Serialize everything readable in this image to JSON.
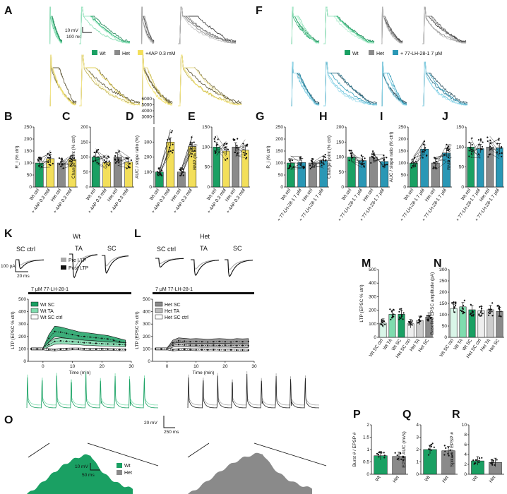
{
  "colors": {
    "wt": "#1aa063",
    "wt_light": "#7fdcae",
    "wt_pale": "#d9f6e8",
    "het": "#8a8a8a",
    "het_dark": "#444444",
    "fourap": "#f3df5a",
    "fourap_dark": "#6b5f2a",
    "lh": "#2a97b5",
    "lh_dark": "#173f4f"
  },
  "panels": {
    "A": "A",
    "B": "B",
    "C": "C",
    "D": "D",
    "E": "E",
    "F": "F",
    "G": "G",
    "H": "H",
    "I": "I",
    "J": "J",
    "K": "K",
    "L": "L",
    "M": "M",
    "N": "N",
    "O": "O",
    "P": "P",
    "Q": "Q",
    "R": "R"
  },
  "scalebars": {
    "a_mv": "10 mV",
    "a_ms": "100 ms",
    "k_pa": "100 pA",
    "k_ms": "20 ms",
    "o_mv": "20 mV",
    "o_ms": "250 ms",
    "o2_mv": "10 mV",
    "o2_ms": "50 ms"
  },
  "legend_A": {
    "wt": "Wt",
    "het": "Het",
    "drug": "+4AP 0.3 mM"
  },
  "legend_F": {
    "wt": "Wt",
    "het": "Het",
    "drug": "+ 77-LH-28-1 7 μM"
  },
  "legend_K": {
    "pre": "Pre LTP",
    "post": "Post LTP",
    "wt_sc": "Wt SC",
    "wt_ta": "Wt TA",
    "wt_scctrl": "Wt SC ctrl"
  },
  "legend_L": {
    "het_sc": "Het SC",
    "het_ta": "Het TA",
    "het_scctrl": "Het SC ctrl"
  },
  "legend_O": {
    "wt": "Wt",
    "het": "Het"
  },
  "trace_titles": {
    "k_group": "Wt",
    "l_group": "Het",
    "sc_ctrl": "SC ctrl",
    "ta": "TA",
    "sc": "SC",
    "drug_bar": "7 μM 77-LH-28-1"
  },
  "chart_data": [
    {
      "panel": "B",
      "type": "bar",
      "ylabel": "R_i (% ctrl)",
      "ylim": [
        0,
        250
      ],
      "yticks": [
        0,
        50,
        100,
        150,
        200,
        250
      ],
      "categories": [
        "Wt ctrl",
        "+ 4AP 0.3 mM",
        "Het ctrl",
        "+ 4AP 0.3 mM"
      ],
      "values": [
        100,
        118,
        100,
        115
      ]
    },
    {
      "panel": "C",
      "type": "bar",
      "ylabel": "Change point (% ctrl)",
      "ylim": [
        0,
        200
      ],
      "yticks": [
        0,
        50,
        100,
        150,
        200
      ],
      "categories": [
        "Wt ctrl",
        "+ 4AP 0.3 mM",
        "Het ctrl",
        "+ 4AP 0.3 mM"
      ],
      "values": [
        100,
        82,
        100,
        83
      ]
    },
    {
      "panel": "D",
      "type": "bar",
      "ylabel": "AUC / slope ratio (%)",
      "ylim": [
        0,
        400
      ],
      "yticks": [
        0,
        100,
        200,
        300
      ],
      "break_ticks": [
        3000,
        4000,
        5000,
        6000
      ],
      "categories": [
        "Wt ctrl",
        "+ 4AP 0.3 mM",
        "Het ctrl",
        "+ 4AP 0.3 mM"
      ],
      "values": [
        100,
        300,
        100,
        270
      ]
    },
    {
      "panel": "E",
      "type": "bar",
      "ylabel": "RMP (% ctrl)",
      "ylim": [
        0,
        150
      ],
      "yticks": [
        0,
        50,
        100,
        150
      ],
      "categories": [
        "Wt ctrl",
        "+ 4AP 0.3 mM",
        "Het ctrl",
        "+ 4AP 0.3 mM"
      ],
      "values": [
        100,
        90,
        100,
        92
      ]
    },
    {
      "panel": "G",
      "type": "bar",
      "ylabel": "R_i (% ctrl)",
      "ylim": [
        0,
        250
      ],
      "yticks": [
        0,
        50,
        100,
        150,
        200,
        250
      ],
      "categories": [
        "Wt ctrl",
        "+ 77-LH-28-1 7 μM",
        "Het ctrl",
        "+ 77-LH-28-1 7 μM"
      ],
      "values": [
        100,
        102,
        100,
        110
      ]
    },
    {
      "panel": "H",
      "type": "bar",
      "ylabel": "Change point (% ctrl)",
      "ylim": [
        0,
        200
      ],
      "yticks": [
        0,
        50,
        100,
        150,
        200
      ],
      "categories": [
        "Wt ctrl",
        "+ 77-LH-28-1 7 μM",
        "Het ctrl",
        "+ 77-LH-28-1 7 μM"
      ],
      "values": [
        100,
        88,
        100,
        85
      ]
    },
    {
      "panel": "I",
      "type": "bar",
      "ylabel": "AUC / slope ratio (% ctrl)",
      "ylim": [
        0,
        250
      ],
      "yticks": [
        0,
        50,
        100,
        150,
        200,
        250
      ],
      "categories": [
        "Wt ctrl",
        "+ 77-LH-28-1 7 μM",
        "Het ctrl",
        "+ 77-LH-28-1 7 μM"
      ],
      "values": [
        100,
        158,
        100,
        142
      ]
    },
    {
      "panel": "J",
      "type": "bar",
      "ylabel": "RMP (% ctrl)",
      "ylim": [
        0,
        150
      ],
      "yticks": [
        0,
        50,
        100,
        150
      ],
      "categories": [
        "Wt ctrl",
        "+ 77-LH-28-1 7 μM",
        "Het ctrl",
        "+ 77-LH-28-1 7 μM"
      ],
      "values": [
        100,
        96,
        100,
        98
      ]
    },
    {
      "panel": "K",
      "type": "line",
      "ylabel": "LTP (EPSC % ctrl)",
      "xlabel": "Time (min)",
      "xlim": [
        -5,
        30
      ],
      "ylim": [
        0,
        500
      ],
      "xticks": [
        0,
        10,
        20,
        30
      ],
      "yticks": [
        0,
        100,
        200,
        300,
        400,
        500
      ],
      "x": [
        -4,
        -2,
        0,
        2,
        4,
        6,
        8,
        10,
        12,
        14,
        16,
        18,
        20,
        22,
        24,
        26,
        28
      ],
      "series": [
        {
          "name": "Wt SC",
          "values": [
            100,
            100,
            100,
            185,
            240,
            235,
            225,
            215,
            205,
            200,
            195,
            190,
            185,
            180,
            170,
            160,
            150
          ]
        },
        {
          "name": "Wt TA",
          "values": [
            100,
            100,
            100,
            135,
            160,
            165,
            162,
            158,
            155,
            150,
            148,
            145,
            142,
            140,
            138,
            135,
            132
          ]
        },
        {
          "name": "Wt SC ctrl",
          "values": [
            100,
            100,
            100,
            95,
            92,
            96,
            98,
            100,
            100,
            98,
            97,
            96,
            98,
            96,
            95,
            94,
            93
          ]
        }
      ]
    },
    {
      "panel": "L",
      "type": "line",
      "ylabel": "LTP (EPSC % ctrl)",
      "xlabel": "Time (min)",
      "xlim": [
        -5,
        30
      ],
      "ylim": [
        0,
        500
      ],
      "xticks": [
        0,
        10,
        20,
        30
      ],
      "yticks": [
        0,
        100,
        200,
        300,
        400,
        500
      ],
      "x": [
        -4,
        -2,
        0,
        2,
        4,
        6,
        8,
        10,
        12,
        14,
        16,
        18,
        20,
        22,
        24,
        26,
        28
      ],
      "series": [
        {
          "name": "Het SC",
          "values": [
            100,
            100,
            100,
            150,
            165,
            162,
            158,
            160,
            158,
            156,
            158,
            160,
            158,
            156,
            160,
            158,
            160
          ]
        },
        {
          "name": "Het TA",
          "values": [
            100,
            100,
            100,
            130,
            135,
            132,
            130,
            130,
            128,
            128,
            130,
            128,
            130,
            128,
            126,
            128,
            126
          ]
        },
        {
          "name": "Het SC ctrl",
          "values": [
            100,
            100,
            100,
            92,
            95,
            96,
            95,
            94,
            93,
            92,
            93,
            92,
            91,
            92,
            90,
            91,
            90
          ]
        }
      ]
    },
    {
      "panel": "M",
      "type": "bar",
      "ylabel": "LTP (EPSC % ctrl)",
      "ylim": [
        0,
        500
      ],
      "yticks": [
        0,
        100,
        200,
        300,
        400,
        500
      ],
      "categories": [
        "Wt SC ctrl",
        "Wt TA",
        "Wt SC",
        "Het SC ctrl",
        "Het TA",
        "Het SC"
      ],
      "values": [
        105,
        170,
        170,
        100,
        125,
        150
      ]
    },
    {
      "panel": "N",
      "type": "bar",
      "ylabel": "Baseline EPSC amplitude (pA)",
      "ylim": [
        0,
        300
      ],
      "yticks": [
        0,
        50,
        100,
        150,
        200,
        250,
        300
      ],
      "categories": [
        "Wt SC ctrl",
        "Wt TA",
        "Wt SC",
        "Het SC ctrl",
        "Het TA",
        "Het SC"
      ],
      "values": [
        128,
        135,
        122,
        118,
        122,
        115
      ]
    },
    {
      "panel": "P",
      "type": "bar",
      "ylabel": "Burst # / EPSP #",
      "ylim": [
        0,
        2.0
      ],
      "yticks": [
        0.0,
        0.5,
        1.0,
        1.5,
        2.0
      ],
      "categories": [
        "Wt",
        "Het"
      ],
      "values": [
        0.75,
        0.72
      ]
    },
    {
      "panel": "Q",
      "type": "bar",
      "ylabel": "EPSP AUC (mVs)",
      "ylim": [
        0,
        4
      ],
      "yticks": [
        0,
        1,
        2,
        3,
        4
      ],
      "categories": [
        "Wt",
        "Het"
      ],
      "values": [
        2.0,
        1.9
      ]
    },
    {
      "panel": "R",
      "type": "bar",
      "ylabel": "Spike # / EPSP #",
      "ylim": [
        0,
        10
      ],
      "yticks": [
        0,
        2,
        4,
        6,
        8,
        10
      ],
      "categories": [
        "Wt",
        "Het"
      ],
      "values": [
        2.7,
        2.4
      ]
    }
  ]
}
